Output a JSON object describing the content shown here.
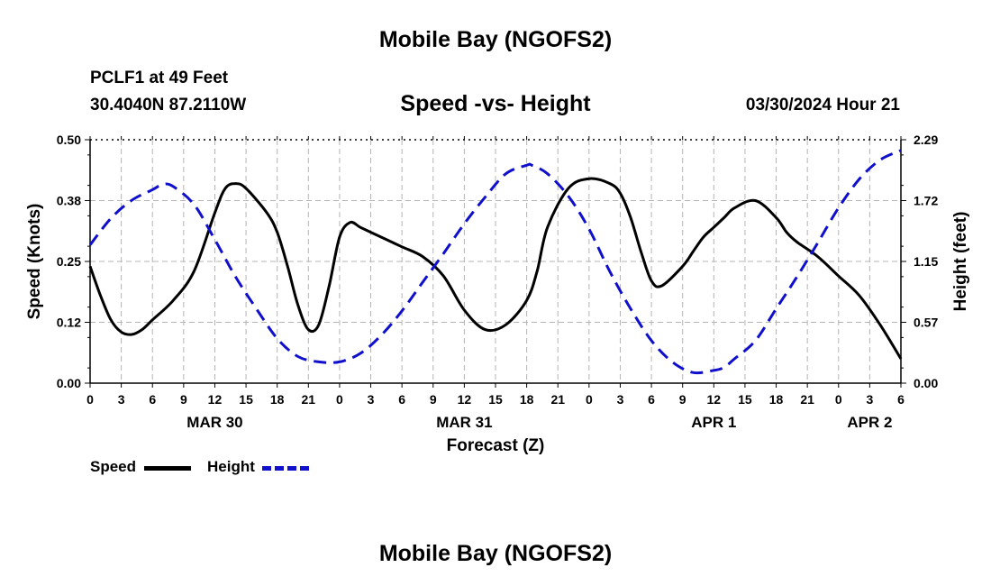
{
  "title": "Mobile Bay (NGOFS2)",
  "footer_title": "Mobile Bay (NGOFS2)",
  "station": "PCLF1 at 49 Feet",
  "coordinates": "30.4040N  87.2110W",
  "subtitle": "Speed -vs- Height",
  "datetime": "03/30/2024 Hour 21",
  "colors": {
    "speed": "#000000",
    "height": "#1010cc",
    "grid": "#b4b4b4"
  },
  "chart_data": {
    "type": "line",
    "xlabel": "Forecast (Z)",
    "ylabel": "Speed (Knots)",
    "y2label": "Height (feet)",
    "x_hours_from_start": [
      0,
      78
    ],
    "x_tick_labels": [
      "0",
      "3",
      "6",
      "9",
      "12",
      "15",
      "18",
      "21",
      "0",
      "3",
      "6",
      "9",
      "12",
      "15",
      "18",
      "21",
      "0",
      "3",
      "6",
      "9",
      "12",
      "15",
      "18",
      "21",
      "0",
      "3",
      "6"
    ],
    "date_labels": [
      {
        "label": "MAR 30",
        "hour_index": 12
      },
      {
        "label": "MAR 31",
        "hour_index": 36
      },
      {
        "label": "APR 1",
        "hour_index": 60
      },
      {
        "label": "APR 2",
        "hour_index": 75
      }
    ],
    "ylim": [
      0,
      0.5
    ],
    "y_ticks": [
      "0.00",
      "0.12",
      "0.25",
      "0.38",
      "0.50"
    ],
    "y2lim": [
      0,
      2.29
    ],
    "y2_ticks": [
      "0.00",
      "0.57",
      "1.15",
      "1.72",
      "2.29"
    ],
    "grid": true,
    "legend_position": "bottom-left",
    "series": [
      {
        "name": "Speed",
        "axis": "left",
        "style": "solid",
        "x": [
          0,
          1,
          2,
          3,
          4,
          5,
          6,
          8,
          10,
          12,
          13,
          14,
          15,
          17,
          18,
          19,
          20,
          21,
          22,
          23,
          24,
          25,
          26,
          27,
          28,
          30,
          32,
          34,
          36,
          38,
          40,
          42,
          43,
          44,
          46,
          48,
          50,
          51,
          52,
          53,
          54,
          55,
          57,
          58,
          59,
          60,
          61,
          62,
          64,
          66,
          67,
          68,
          70,
          72,
          74,
          76,
          78
        ],
        "values": [
          0.24,
          0.18,
          0.13,
          0.105,
          0.1,
          0.11,
          0.13,
          0.17,
          0.23,
          0.35,
          0.4,
          0.41,
          0.4,
          0.35,
          0.31,
          0.24,
          0.16,
          0.11,
          0.12,
          0.2,
          0.3,
          0.33,
          0.32,
          0.31,
          0.3,
          0.28,
          0.26,
          0.22,
          0.15,
          0.11,
          0.12,
          0.17,
          0.23,
          0.32,
          0.4,
          0.42,
          0.41,
          0.39,
          0.34,
          0.27,
          0.21,
          0.2,
          0.24,
          0.27,
          0.3,
          0.32,
          0.34,
          0.36,
          0.375,
          0.34,
          0.31,
          0.29,
          0.26,
          0.22,
          0.18,
          0.12,
          0.05
        ]
      },
      {
        "name": "Height",
        "axis": "right",
        "style": "dashed",
        "x": [
          0,
          2,
          4,
          6,
          7,
          8,
          10,
          12,
          14,
          16,
          18,
          20,
          22,
          24,
          26,
          28,
          30,
          32,
          34,
          36,
          38,
          40,
          42,
          42.5,
          44,
          46,
          48,
          50,
          52,
          54,
          56,
          58,
          60,
          61,
          62,
          64,
          66,
          68,
          70,
          72,
          74,
          76,
          78
        ],
        "values": [
          1.3,
          1.55,
          1.72,
          1.82,
          1.87,
          1.85,
          1.68,
          1.35,
          1.0,
          0.7,
          0.42,
          0.25,
          0.2,
          0.2,
          0.28,
          0.45,
          0.68,
          0.95,
          1.22,
          1.5,
          1.75,
          1.97,
          2.05,
          2.05,
          1.97,
          1.76,
          1.45,
          1.05,
          0.7,
          0.4,
          0.2,
          0.1,
          0.12,
          0.15,
          0.23,
          0.4,
          0.7,
          1.0,
          1.32,
          1.65,
          1.92,
          2.1,
          2.19
        ]
      }
    ]
  }
}
